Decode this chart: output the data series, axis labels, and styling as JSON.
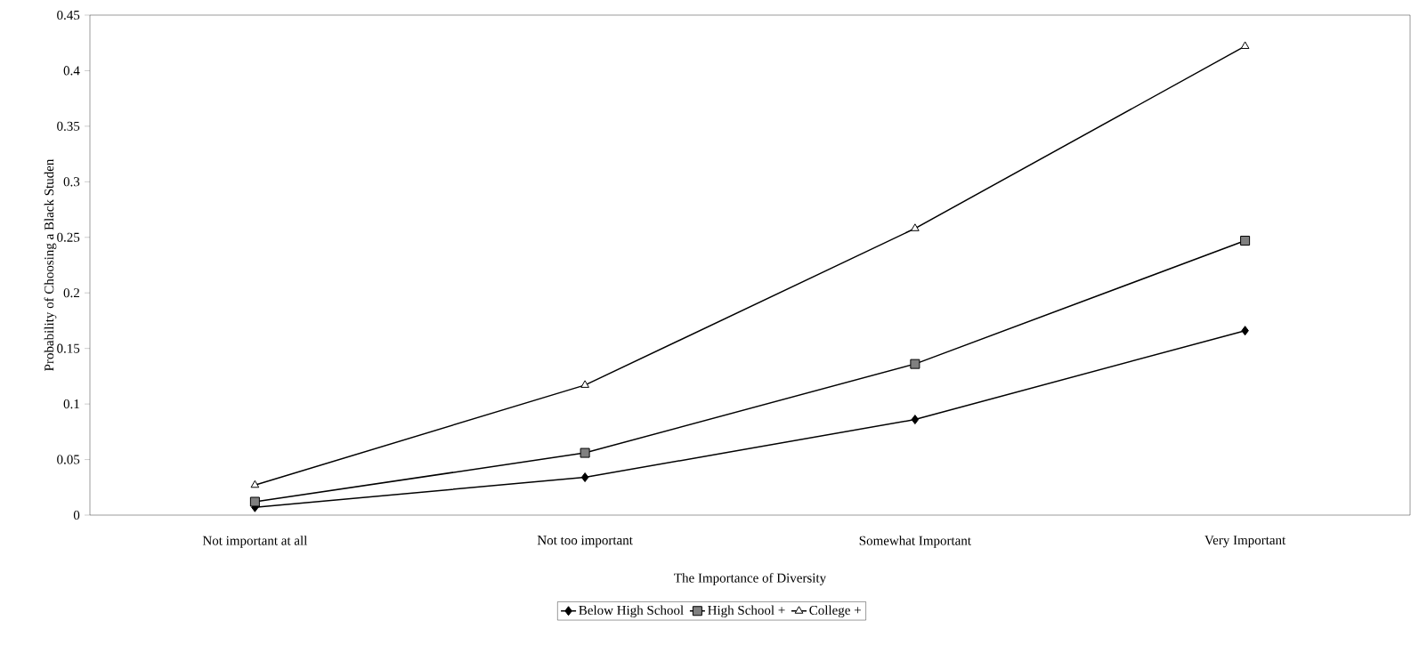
{
  "chart_data": {
    "type": "line",
    "xlabel": "The Importance of Diversity",
    "ylabel": "Probability of Choosing a Black Studen",
    "categories": [
      "Not important at all",
      "Not too important",
      "Somewhat Important",
      "Very Important"
    ],
    "series": [
      {
        "name": "Below High School",
        "color": "#000000",
        "marker": "diamond",
        "values": [
          0.007,
          0.034,
          0.086,
          0.166
        ]
      },
      {
        "name": "High School +",
        "color": "#808080",
        "marker": "square",
        "values": [
          0.012,
          0.056,
          0.136,
          0.247
        ]
      },
      {
        "name": "College +",
        "color": "#ffffff",
        "marker": "triangle",
        "values": [
          0.027,
          0.117,
          0.258,
          0.422
        ]
      }
    ],
    "ylim": [
      0,
      0.45
    ],
    "yticks": [
      0,
      0.05,
      0.1,
      0.15,
      0.2,
      0.25,
      0.3,
      0.35,
      0.4,
      0.45
    ],
    "grid": false,
    "legend": "bottom",
    "line_style": "solid"
  }
}
